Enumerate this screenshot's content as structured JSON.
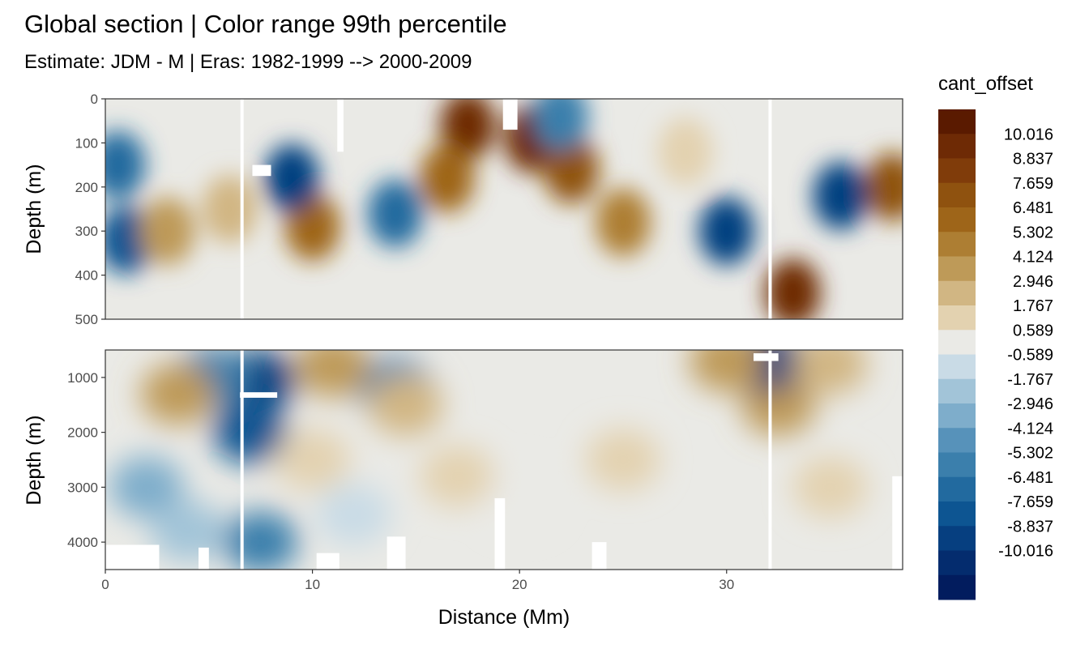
{
  "chart_data": {
    "type": "heatmap",
    "title": "Global section | Color range 99th percentile",
    "subtitle": "Estimate: JDM - M | Eras: 1982-1999 --> 2000-2009",
    "xlabel": "Distance (Mm)",
    "ylabel": "Depth (m)",
    "xlim": [
      0,
      38.5
    ],
    "x_ticks": [
      0,
      10,
      20,
      30
    ],
    "panels": [
      {
        "ylim": [
          0,
          500
        ],
        "y_ticks": [
          0,
          100,
          200,
          300,
          400,
          500
        ]
      },
      {
        "ylim": [
          500,
          4500
        ],
        "y_ticks": [
          1000,
          2000,
          3000,
          4000
        ]
      }
    ],
    "section_gaps_mm": [
      6.6,
      32.1
    ],
    "legend": {
      "title": "cant_offset",
      "breaks": [
        10.016,
        8.837,
        7.659,
        6.481,
        5.302,
        4.124,
        2.946,
        1.767,
        0.589,
        -0.589,
        -1.767,
        -2.946,
        -4.124,
        -5.302,
        -6.481,
        -7.659,
        -8.837,
        -10.016
      ],
      "colors": [
        "#5a1a00",
        "#6e2a05",
        "#803c0a",
        "#8f520f",
        "#9e6519",
        "#ad7e33",
        "#be9a58",
        "#d1b683",
        "#e3d2b0",
        "#eaeae6",
        "#c9dbe6",
        "#a2c4d8",
        "#7eadcb",
        "#5792ba",
        "#3b7fac",
        "#226a9f",
        "#0d5592",
        "#063f80",
        "#042c6e",
        "#021c5e"
      ]
    },
    "features": [
      {
        "panel": 0,
        "x": 17.5,
        "y": 60,
        "value": 9.5
      },
      {
        "panel": 0,
        "x": 16.5,
        "y": 180,
        "value": 6.0
      },
      {
        "panel": 0,
        "x": 20.6,
        "y": 90,
        "value": 9.0
      },
      {
        "panel": 0,
        "x": 22.5,
        "y": 160,
        "value": 6.5
      },
      {
        "panel": 0,
        "x": 10.0,
        "y": 290,
        "value": 6.0
      },
      {
        "panel": 0,
        "x": 33.2,
        "y": 440,
        "value": 10.0
      },
      {
        "panel": 0,
        "x": 38.0,
        "y": 200,
        "value": 7.0
      },
      {
        "panel": 0,
        "x": 0.6,
        "y": 150,
        "value": -7.5
      },
      {
        "panel": 0,
        "x": 1.0,
        "y": 320,
        "value": -8.0
      },
      {
        "panel": 0,
        "x": 9.0,
        "y": 180,
        "value": -9.0
      },
      {
        "panel": 0,
        "x": 14.0,
        "y": 260,
        "value": -7.0
      },
      {
        "panel": 0,
        "x": 35.5,
        "y": 220,
        "value": -10.0
      },
      {
        "panel": 0,
        "x": 30.0,
        "y": 300,
        "value": -9.0
      },
      {
        "panel": 0,
        "x": 22.0,
        "y": 40,
        "value": -6.0
      },
      {
        "panel": 0,
        "x": 3.0,
        "y": 300,
        "value": 3.5
      },
      {
        "panel": 0,
        "x": 6.0,
        "y": 250,
        "value": 2.5
      },
      {
        "panel": 0,
        "x": 25.0,
        "y": 280,
        "value": 4.5
      },
      {
        "panel": 0,
        "x": 28.0,
        "y": 120,
        "value": 1.5
      },
      {
        "panel": 1,
        "x": 7.4,
        "y": 1050,
        "value": -10.0
      },
      {
        "panel": 1,
        "x": 7.0,
        "y": 2000,
        "value": -8.0
      },
      {
        "panel": 1,
        "x": 5.2,
        "y": 1000,
        "value": -6.0
      },
      {
        "panel": 1,
        "x": 7.5,
        "y": 4000,
        "value": -5.5
      },
      {
        "panel": 1,
        "x": 2.0,
        "y": 3000,
        "value": -3.0
      },
      {
        "panel": 1,
        "x": 14.0,
        "y": 1200,
        "value": -6.0
      },
      {
        "panel": 1,
        "x": 14.5,
        "y": 1500,
        "value": 2.5
      },
      {
        "panel": 1,
        "x": 3.5,
        "y": 1300,
        "value": 3.5
      },
      {
        "panel": 1,
        "x": 11.0,
        "y": 800,
        "value": 3.0
      },
      {
        "panel": 1,
        "x": 32.5,
        "y": 1500,
        "value": 4.0
      },
      {
        "panel": 1,
        "x": 32.0,
        "y": 700,
        "value": -10.0
      },
      {
        "panel": 1,
        "x": 30.0,
        "y": 700,
        "value": 3.0
      },
      {
        "panel": 1,
        "x": 35.0,
        "y": 750,
        "value": 2.5
      },
      {
        "panel": 1,
        "x": 25.0,
        "y": 2500,
        "value": 1.2
      },
      {
        "panel": 1,
        "x": 35.0,
        "y": 3000,
        "value": 1.6
      },
      {
        "panel": 1,
        "x": 20.0,
        "y": 3200,
        "value": -0.2
      },
      {
        "panel": 1,
        "x": 10.0,
        "y": 2500,
        "value": 1.5
      },
      {
        "panel": 1,
        "x": 17.0,
        "y": 2800,
        "value": 0.8
      },
      {
        "panel": 1,
        "x": 12.0,
        "y": 3500,
        "value": -1.5
      },
      {
        "panel": 1,
        "x": 4.0,
        "y": 3800,
        "value": -2.0
      }
    ],
    "missing_regions": [
      {
        "panel": 0,
        "x0": 11.2,
        "x1": 11.5,
        "y0": 0,
        "y1": 120
      },
      {
        "panel": 0,
        "x0": 7.1,
        "x1": 8.0,
        "y0": 150,
        "y1": 175
      },
      {
        "panel": 0,
        "x0": 19.2,
        "x1": 19.9,
        "y0": 0,
        "y1": 70
      },
      {
        "panel": 1,
        "x0": 6.5,
        "x1": 8.3,
        "y0": 1270,
        "y1": 1370
      },
      {
        "panel": 1,
        "x0": 31.3,
        "x1": 32.5,
        "y0": 560,
        "y1": 700
      },
      {
        "panel": 1,
        "x0": 0,
        "x1": 2.6,
        "y0": 4050,
        "y1": 4500
      },
      {
        "panel": 1,
        "x0": 4.5,
        "x1": 5.0,
        "y0": 4100,
        "y1": 4500
      },
      {
        "panel": 1,
        "x0": 10.2,
        "x1": 11.3,
        "y0": 4200,
        "y1": 4500
      },
      {
        "panel": 1,
        "x0": 13.6,
        "x1": 14.5,
        "y0": 3900,
        "y1": 4500
      },
      {
        "panel": 1,
        "x0": 18.8,
        "x1": 19.3,
        "y0": 3200,
        "y1": 4500
      },
      {
        "panel": 1,
        "x0": 23.5,
        "x1": 24.2,
        "y0": 4000,
        "y1": 4500
      },
      {
        "panel": 1,
        "x0": 38.0,
        "x1": 38.5,
        "y0": 2800,
        "y1": 4500
      }
    ]
  }
}
